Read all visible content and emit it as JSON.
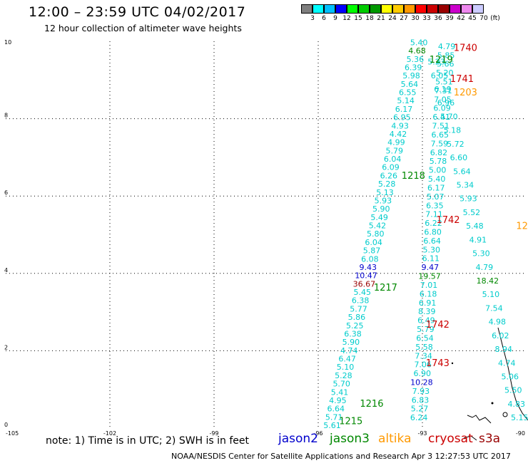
{
  "header": {
    "title": "12:00 – 23:59 UTC 04/02/2017",
    "subtitle": "12 hour collection of altimeter wave heights"
  },
  "colorbar": {
    "labels": [
      "3",
      "6",
      "9",
      "12",
      "15",
      "18",
      "21",
      "24",
      "27",
      "30",
      "33",
      "36",
      "39",
      "42",
      "45",
      "70",
      "(ft)"
    ],
    "colors": [
      "#7f7f7f",
      "#00ffff",
      "#00bfff",
      "#0000ff",
      "#00ff00",
      "#00cc00",
      "#009900",
      "#ffff00",
      "#ffcc00",
      "#ff9900",
      "#ff0000",
      "#cc0000",
      "#990000",
      "#cc00cc",
      "#ee88ee",
      "#ccccff"
    ]
  },
  "axes": {
    "lat_labels": [
      "10",
      "8",
      "6",
      "4",
      "2",
      "0"
    ],
    "lon_labels": [
      "-105",
      "-102",
      "-99",
      "-96",
      "-93",
      "-90"
    ]
  },
  "footer": {
    "note": "note:  1) Time is in UTC;  2) SWH is in feet",
    "credit": "NOAA/NESDIS Center for Satellite Applications and Research     Apr  3 12:27:53 UTC 2017"
  },
  "satellites": [
    {
      "name": "jason2",
      "color": "#0000cc"
    },
    {
      "name": "jason3",
      "color": "#008800"
    },
    {
      "name": "altika",
      "color": "#ff9900"
    },
    {
      "name": "cryosat",
      "color": "#cc0000"
    },
    {
      "name": "s3a",
      "color": "#990000"
    }
  ],
  "tracks": [
    {
      "start": [
        -95.6,
        0.0
      ],
      "end": [
        -93.1,
        9.9
      ],
      "color": "#00cccc",
      "values": [
        "5.61",
        "5.71",
        "6.64",
        "4.95",
        "5.41",
        "5.70",
        "5.28",
        "5.10",
        "6.47",
        "4.74",
        "5.90",
        "6.38",
        "5.25",
        "5.86",
        "5.77",
        "6.38",
        "5.45",
        "36.67",
        "10.47",
        "9.43",
        "6.08",
        "5.87",
        "6.04",
        "5.80",
        "5.42",
        "5.49",
        "5.90",
        "5.93",
        "5.13",
        "5.28",
        "6.26",
        "6.09",
        "6.04",
        "5.79",
        "4.99",
        "4.42",
        "4.93",
        "6.95",
        "6.17",
        "5.14",
        "6.55",
        "5.64",
        "5.98",
        "6.39",
        "5.36",
        "4.68",
        "5.40"
      ],
      "special_colors": {
        "17": "#990000",
        "18": "#0000cc",
        "19": "#0000cc",
        "45": "#008800"
      }
    },
    {
      "start": [
        -93.1,
        0.2
      ],
      "end": [
        -92.3,
        9.8
      ],
      "color": "#00cccc",
      "values": [
        "6.24",
        "5.27",
        "6.83",
        "7.93",
        "10.28",
        "6.90",
        "7.06",
        "7.34",
        "5.58",
        "6.54",
        "5.79",
        "6.49",
        "8.39",
        "6.91",
        "6.18",
        "7.01",
        "19.57",
        "9.47",
        "6.11",
        "5.30",
        "6.64",
        "6.80",
        "6.22",
        "7.11",
        "6.35",
        "5.07",
        "6.17",
        "5.40",
        "5.00",
        "5.78",
        "6.82",
        "7.59",
        "6.65",
        "7.51",
        "6.41",
        "6.09",
        "7.05",
        "7.31",
        "5.51",
        "5.20",
        "5.66",
        "5.85",
        "4.79"
      ],
      "special_colors": {
        "4": "#0000cc",
        "16": "#008800",
        "17": "#0000cc"
      }
    },
    {
      "start": [
        -90.2,
        0.2
      ],
      "end": [
        -92.6,
        9.4
      ],
      "color": "#00cccc",
      "values": [
        "5.15",
        "4.83",
        "5.50",
        "5.06",
        "4.74",
        "8.94",
        "6.02",
        "4.98",
        "7.54",
        "5.10",
        "18.42",
        "4.79",
        "5.30",
        "4.91",
        "5.48",
        "5.52",
        "5.93",
        "5.34",
        "5.64",
        "6.60",
        "5.72",
        "5.18",
        "5.70",
        "6.96",
        "6.19",
        "6.05",
        "5.23"
      ],
      "special_colors": {
        "10": "#008800"
      }
    }
  ],
  "pass_labels": [
    {
      "text": "1740",
      "lon": -92.1,
      "lat": 9.75,
      "color": "#cc0000"
    },
    {
      "text": "1219",
      "lon": -92.8,
      "lat": 9.45,
      "color": "#008800"
    },
    {
      "text": "1741",
      "lon": -92.2,
      "lat": 8.95,
      "color": "#cc0000"
    },
    {
      "text": "1203",
      "lon": -92.1,
      "lat": 8.6,
      "color": "#ff9900"
    },
    {
      "text": "1218",
      "lon": -93.6,
      "lat": 6.45,
      "color": "#008800"
    },
    {
      "text": "1742",
      "lon": -92.6,
      "lat": 5.3,
      "color": "#cc0000"
    },
    {
      "text": "12",
      "lon": -90.3,
      "lat": 5.15,
      "color": "#ff9900"
    },
    {
      "text": "1217",
      "lon": -94.4,
      "lat": 3.55,
      "color": "#008800"
    },
    {
      "text": "1742",
      "lon": -92.9,
      "lat": 2.6,
      "color": "#cc0000"
    },
    {
      "text": "1743",
      "lon": -92.9,
      "lat": 1.6,
      "color": "#cc0000"
    },
    {
      "text": "1216",
      "lon": -94.8,
      "lat": 0.55,
      "color": "#008800"
    },
    {
      "text": "1215",
      "lon": -95.4,
      "lat": 0.1,
      "color": "#008800"
    }
  ]
}
